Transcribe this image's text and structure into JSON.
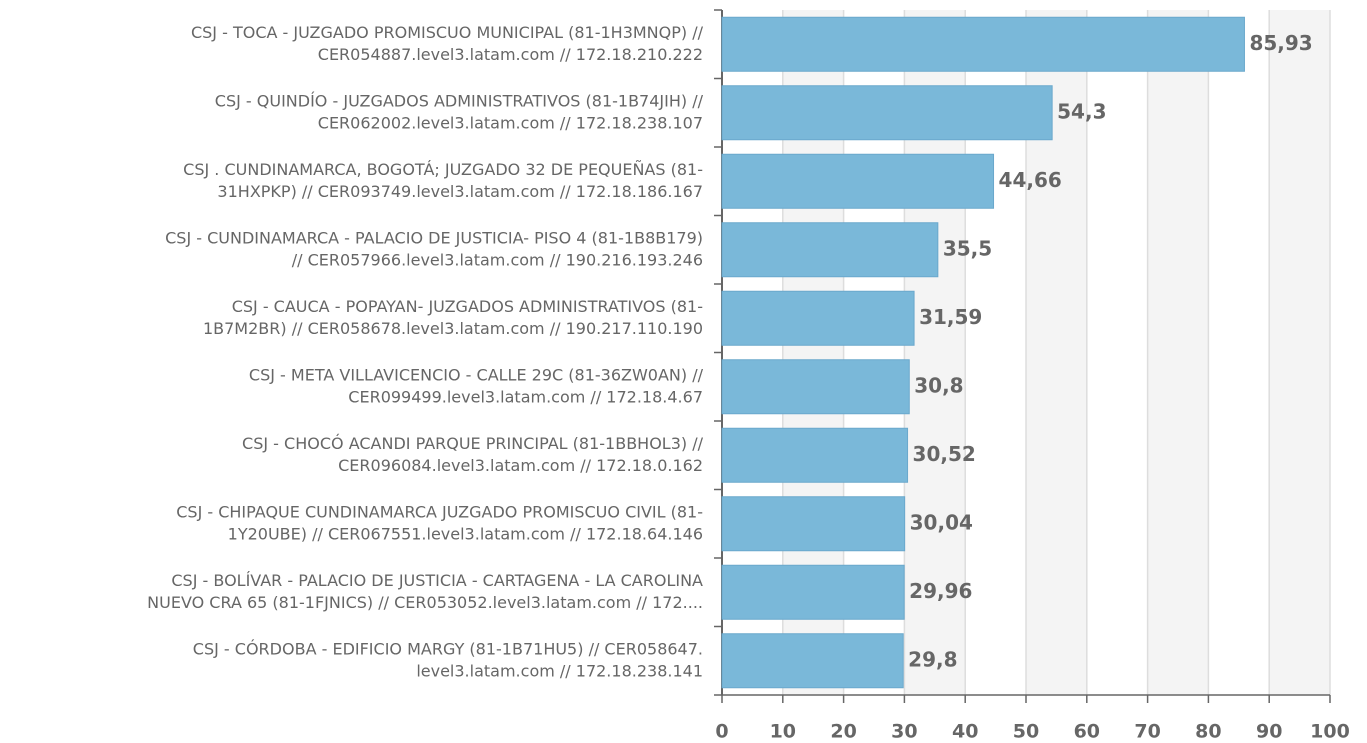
{
  "chart_data": {
    "type": "bar",
    "orientation": "horizontal",
    "categories": [
      [
        "CSJ - TOCA - JUZGADO PROMISCUO MUNICIPAL (81-1H3MNQP) //",
        "CER054887.level3.latam.com // 172.18.210.222"
      ],
      [
        "CSJ - QUINDÍO -  JUZGADOS ADMINISTRATIVOS (81-1B74JIH) //",
        "CER062002.level3.latam.com // 172.18.238.107"
      ],
      [
        "CSJ . CUNDINAMARCA, BOGOTÁ; JUZGADO 32 DE PEQUEÑAS (81-",
        "31HXPKP) // CER093749.level3.latam.com // 172.18.186.167"
      ],
      [
        "CSJ - CUNDINAMARCA -  PALACIO DE JUSTICIA- PISO 4 (81-1B8B179)",
        "// CER057966.level3.latam.com // 190.216.193.246"
      ],
      [
        "CSJ - CAUCA -  POPAYAN- JUZGADOS ADMINISTRATIVOS (81-",
        "1B7M2BR) // CER058678.level3.latam.com // 190.217.110.190"
      ],
      [
        "CSJ -  META VILLAVICENCIO - CALLE 29C (81-36ZW0AN) //",
        "CER099499.level3.latam.com // 172.18.4.67"
      ],
      [
        "CSJ - CHOCÓ ACANDI PARQUE PRINCIPAL (81-1BBHOL3) //",
        "CER096084.level3.latam.com // 172.18.0.162"
      ],
      [
        "CSJ - CHIPAQUE CUNDINAMARCA  JUZGADO PROMISCUO CIVIL (81-",
        "1Y20UBE) // CER067551.level3.latam.com // 172.18.64.146"
      ],
      [
        "CSJ - BOLÍVAR -  PALACIO DE JUSTICIA - CARTAGENA - LA CAROLINA",
        "NUEVO CRA 65 (81-1FJNICS) // CER053052.level3.latam.com // 172...."
      ],
      [
        "CSJ - CÓRDOBA -  EDIFICIO MARGY (81-1B71HU5) // CER058647.",
        "level3.latam.com // 172.18.238.141"
      ]
    ],
    "values": [
      85.93,
      54.3,
      44.66,
      35.5,
      31.59,
      30.8,
      30.52,
      30.04,
      29.96,
      29.8
    ],
    "value_labels": [
      "85,93",
      "54,3",
      "44,66",
      "35,5",
      "31,59",
      "30,8",
      "30,52",
      "30,04",
      "29,96",
      "29,8"
    ],
    "color": "#7ab8d9",
    "xlim": [
      0,
      100
    ],
    "xticks": [
      0,
      10,
      20,
      30,
      40,
      50,
      60,
      70,
      80,
      90,
      100
    ],
    "grid": true
  }
}
